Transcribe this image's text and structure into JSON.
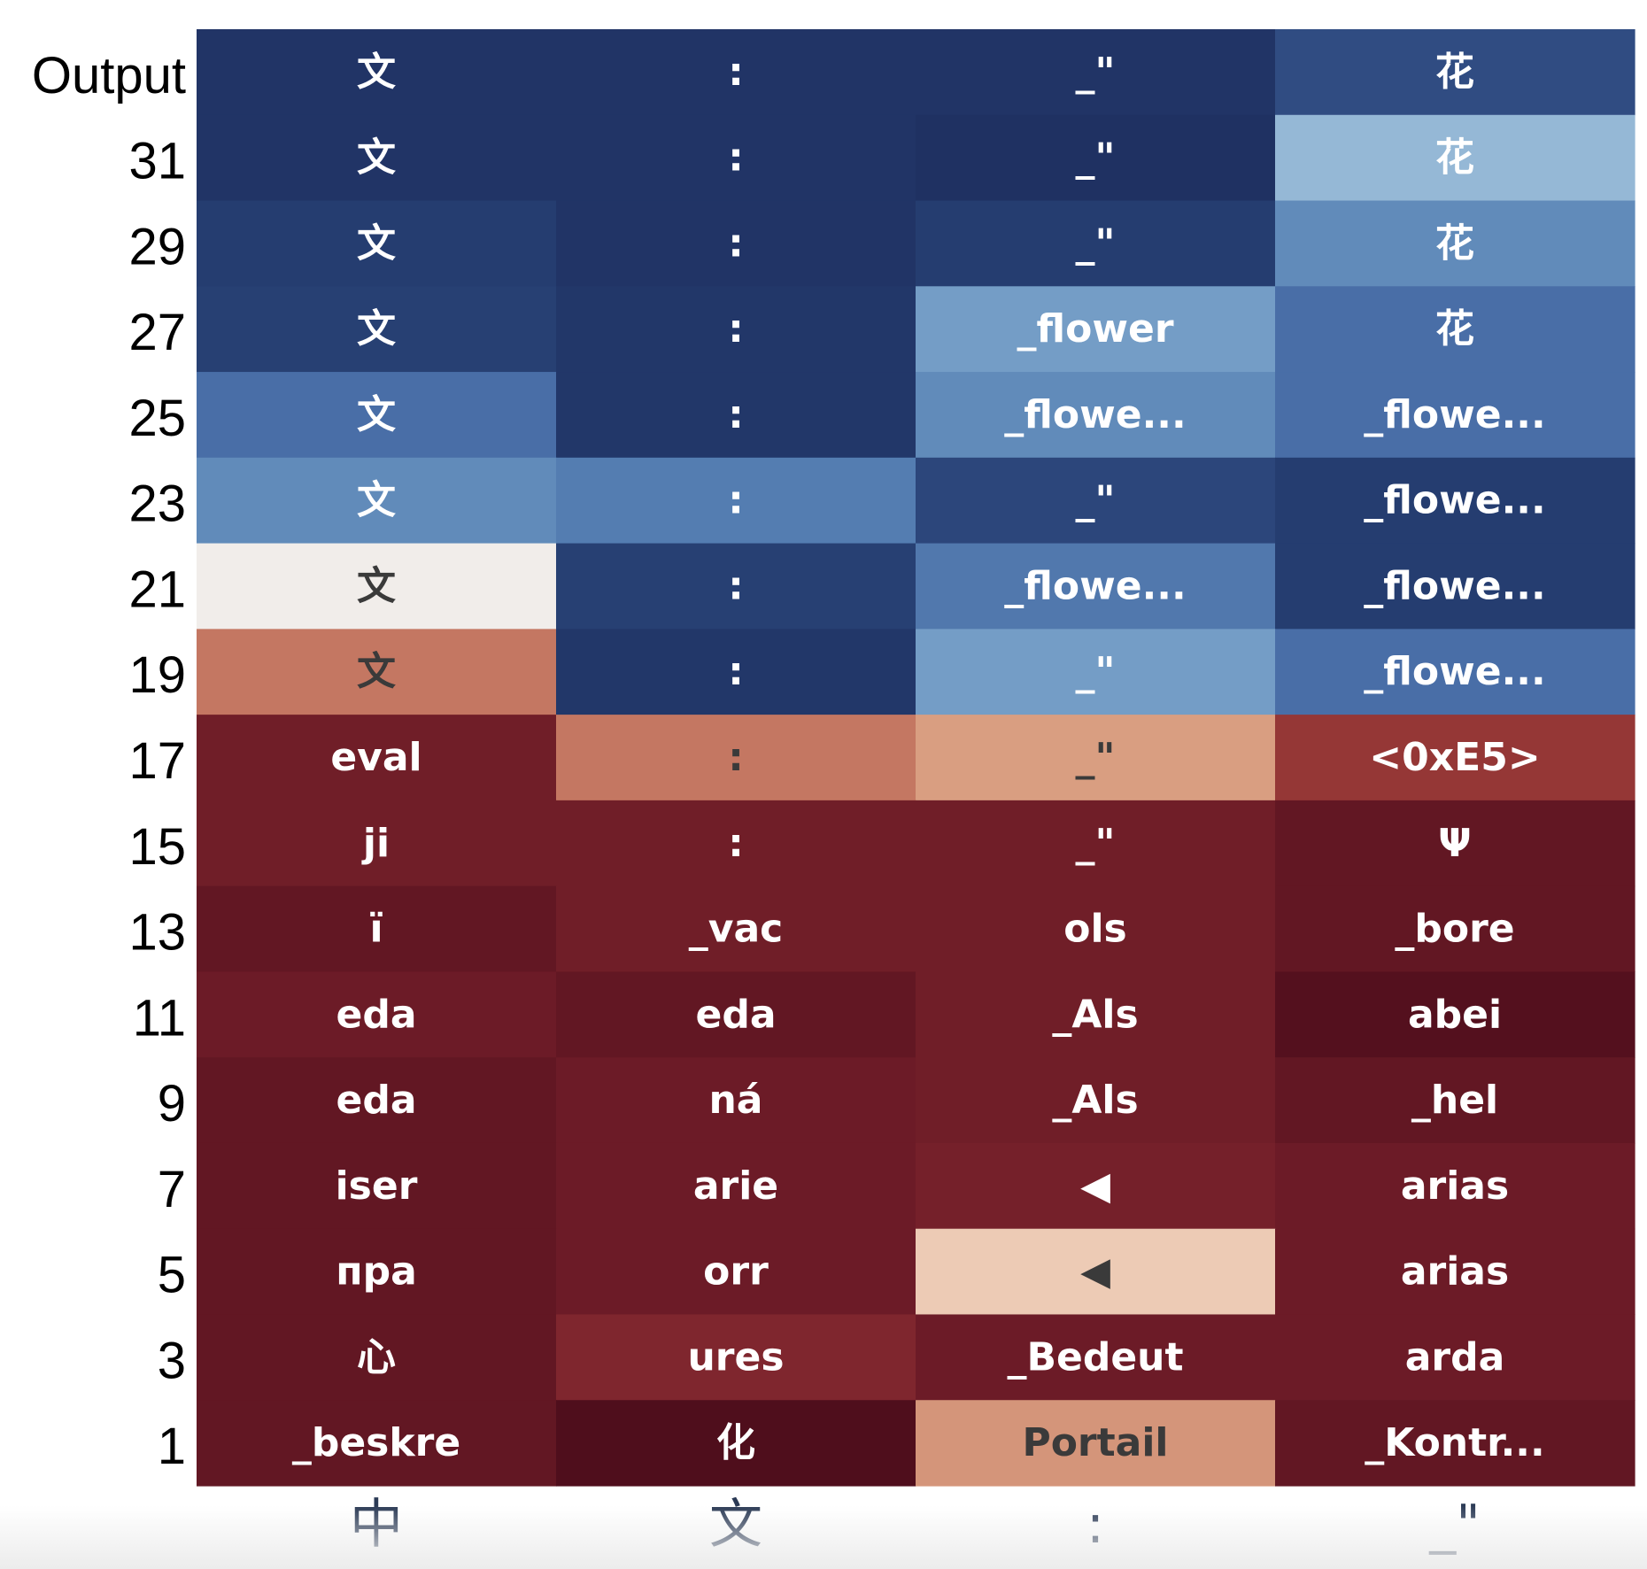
{
  "chart_data": {
    "type": "heatmap",
    "x_tokens": [
      "中",
      "文",
      ":",
      "_\""
    ],
    "y_labels": [
      "Output",
      "31",
      "29",
      "27",
      "25",
      "23",
      "21",
      "19",
      "17",
      "15",
      "13",
      "11",
      "9",
      "7",
      "5",
      "3",
      "1"
    ],
    "value_range": [
      0,
      1
    ],
    "colormap": "red-to-blue (RdBu)",
    "cells": [
      [
        {
          "t": "文",
          "v": 0.96
        },
        {
          "t": ":",
          "v": 0.96
        },
        {
          "t": "_\"",
          "v": 0.96
        },
        {
          "t": "花",
          "v": 0.9
        }
      ],
      [
        {
          "t": "文",
          "v": 0.96
        },
        {
          "t": ":",
          "v": 0.96
        },
        {
          "t": "_\"",
          "v": 0.97
        },
        {
          "t": "花",
          "v": 0.68
        }
      ],
      [
        {
          "t": "文",
          "v": 0.93
        },
        {
          "t": ":",
          "v": 0.96
        },
        {
          "t": "_\"",
          "v": 0.93
        },
        {
          "t": "花",
          "v": 0.78
        }
      ],
      [
        {
          "t": "文",
          "v": 0.92
        },
        {
          "t": ":",
          "v": 0.95
        },
        {
          "t": "_flower",
          "v": 0.74
        },
        {
          "t": "花",
          "v": 0.84
        }
      ],
      [
        {
          "t": "文",
          "v": 0.84
        },
        {
          "t": ":",
          "v": 0.95
        },
        {
          "t": "_flowe...",
          "v": 0.78
        },
        {
          "t": "_flowe...",
          "v": 0.84
        }
      ],
      [
        {
          "t": "文",
          "v": 0.78
        },
        {
          "t": ":",
          "v": 0.81
        },
        {
          "t": "_\"",
          "v": 0.91
        },
        {
          "t": "_flowe...",
          "v": 0.93
        }
      ],
      [
        {
          "t": "文",
          "v": 0.52
        },
        {
          "t": ":",
          "v": 0.92
        },
        {
          "t": "_flowe...",
          "v": 0.82
        },
        {
          "t": "_flowe...",
          "v": 0.93
        }
      ],
      [
        {
          "t": "文",
          "v": 0.28
        },
        {
          "t": ":",
          "v": 0.95
        },
        {
          "t": "_\"",
          "v": 0.74
        },
        {
          "t": "_flowe...",
          "v": 0.84
        }
      ],
      [
        {
          "t": "eval",
          "v": 0.08
        },
        {
          "t": ":",
          "v": 0.28
        },
        {
          "t": "_\"",
          "v": 0.36
        },
        {
          "t": "<0xE5>",
          "v": 0.16
        }
      ],
      [
        {
          "t": "ji",
          "v": 0.08
        },
        {
          "t": ":",
          "v": 0.08
        },
        {
          "t": "_\"",
          "v": 0.08
        },
        {
          "t": "Ψ",
          "v": 0.05
        }
      ],
      [
        {
          "t": "ï",
          "v": 0.05
        },
        {
          "t": "_vac",
          "v": 0.08
        },
        {
          "t": "ols",
          "v": 0.08
        },
        {
          "t": "_bore",
          "v": 0.05
        }
      ],
      [
        {
          "t": "eda",
          "v": 0.07
        },
        {
          "t": "eda",
          "v": 0.05
        },
        {
          "t": "_Als",
          "v": 0.08
        },
        {
          "t": "abei",
          "v": 0.02
        }
      ],
      [
        {
          "t": "eda",
          "v": 0.05
        },
        {
          "t": "ná",
          "v": 0.07
        },
        {
          "t": "_Als",
          "v": 0.08
        },
        {
          "t": "_hel",
          "v": 0.05
        }
      ],
      [
        {
          "t": "iser",
          "v": 0.05
        },
        {
          "t": "arie",
          "v": 0.07
        },
        {
          "t": "◀",
          "v": 0.09
        },
        {
          "t": "arias",
          "v": 0.07
        }
      ],
      [
        {
          "t": "пpa",
          "v": 0.05
        },
        {
          "t": "orr",
          "v": 0.07
        },
        {
          "t": "◀",
          "v": 0.44
        },
        {
          "t": "arias",
          "v": 0.07
        }
      ],
      [
        {
          "t": "心",
          "v": 0.05
        },
        {
          "t": "ures",
          "v": 0.11
        },
        {
          "t": "_Bedeut",
          "v": 0.07
        },
        {
          "t": "arda",
          "v": 0.07
        }
      ],
      [
        {
          "t": "_beskre",
          "v": 0.05
        },
        {
          "t": "化",
          "v": 0.01
        },
        {
          "t": "Portail",
          "v": 0.34
        },
        {
          "t": "_Kontr...",
          "v": 0.05
        }
      ]
    ]
  }
}
